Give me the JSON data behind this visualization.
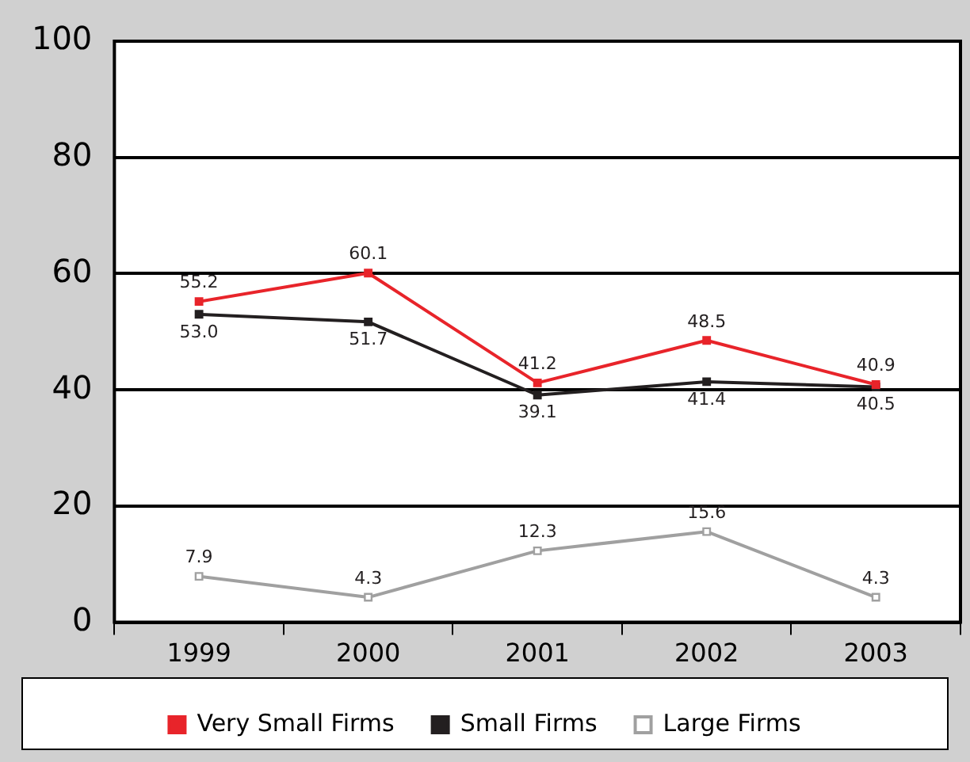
{
  "chart_data": {
    "type": "line",
    "categories": [
      "1999",
      "2000",
      "2001",
      "2002",
      "2003"
    ],
    "series": [
      {
        "name": "Very Small Firms",
        "color": "#e8242a",
        "values": [
          55.2,
          60.1,
          41.2,
          48.5,
          40.9
        ],
        "value_labels": [
          "55.2",
          "60.1",
          "41.2",
          "48.5",
          "40.9"
        ]
      },
      {
        "name": "Small Firms",
        "color": "#231f20",
        "values": [
          53.0,
          51.7,
          39.1,
          41.4,
          40.5
        ],
        "value_labels": [
          "53.0",
          "51.7",
          "39.1",
          "41.4",
          "40.5"
        ]
      },
      {
        "name": "Large Firms",
        "color": "#a0a0a0",
        "values": [
          7.9,
          4.3,
          12.3,
          15.6,
          4.3
        ],
        "value_labels": [
          "7.9",
          "4.3",
          "12.3",
          "15.6",
          "4.3"
        ]
      }
    ],
    "ylim": [
      0,
      100
    ],
    "yticks": [
      0,
      20,
      40,
      60,
      80,
      100
    ],
    "grid": "y",
    "legend": "bottom",
    "marker": "square",
    "line_style": "solid"
  }
}
